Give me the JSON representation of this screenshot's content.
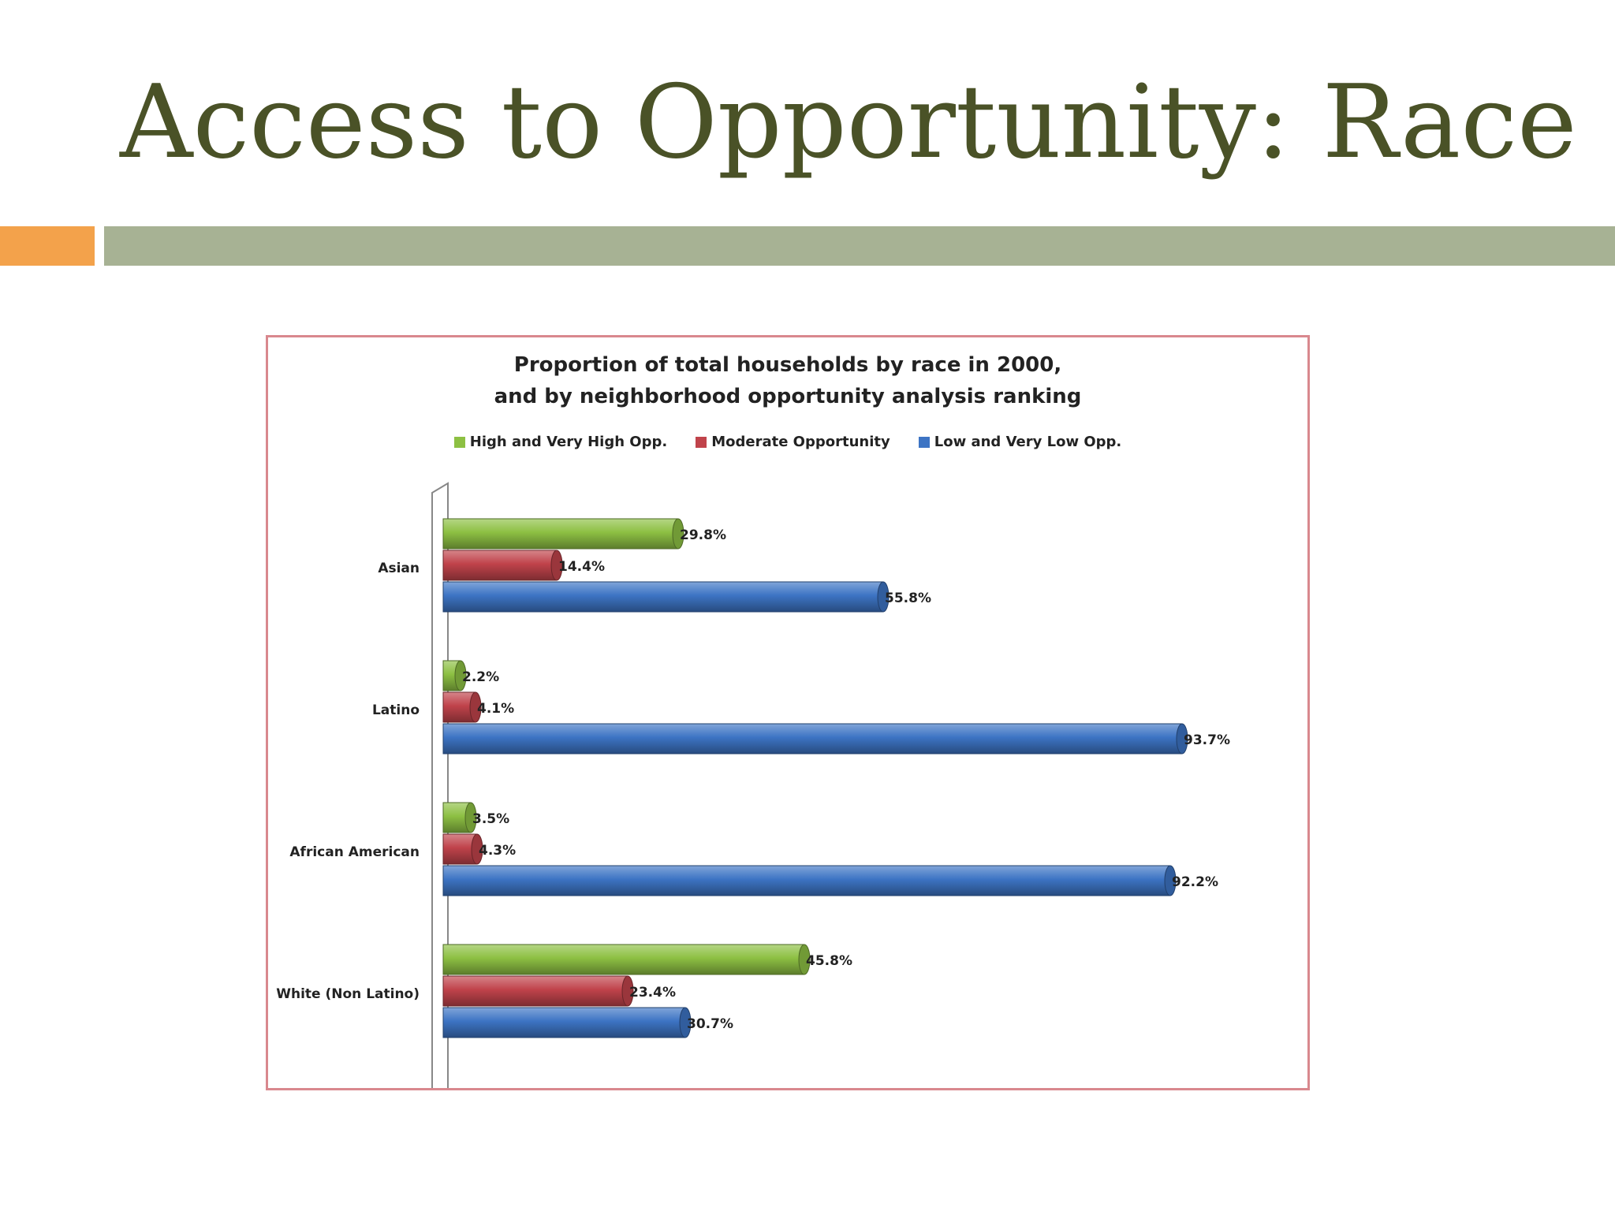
{
  "slide": {
    "title": "Access to Opportunity: Race"
  },
  "chart_data": {
    "type": "bar",
    "orientation": "horizontal",
    "title_line1": "Proportion of total households by race in 2000,",
    "title_line2": "and by neighborhood opportunity analysis ranking",
    "legend_position": "top",
    "categories": [
      "Asian",
      "Latino",
      "African American",
      "White (Non Latino)"
    ],
    "series": [
      {
        "name": "High and Very High Opp.",
        "color": "#8dc043",
        "values": [
          29.8,
          2.2,
          3.5,
          45.8
        ],
        "labels": [
          "29.8%",
          "2.2%",
          "3.5%",
          "45.8%"
        ]
      },
      {
        "name": "Moderate Opportunity",
        "color": "#c0434b",
        "values": [
          14.4,
          4.1,
          4.3,
          23.4
        ],
        "labels": [
          "14.4%",
          "4.1%",
          "4.3%",
          "23.4%"
        ]
      },
      {
        "name": "Low and Very Low Opp.",
        "color": "#3d74c4",
        "values": [
          55.8,
          93.7,
          92.2,
          30.7
        ],
        "labels": [
          "55.8%",
          "93.7%",
          "92.2%",
          "30.7%"
        ]
      }
    ],
    "xlim": [
      0,
      100
    ],
    "grid": false
  }
}
